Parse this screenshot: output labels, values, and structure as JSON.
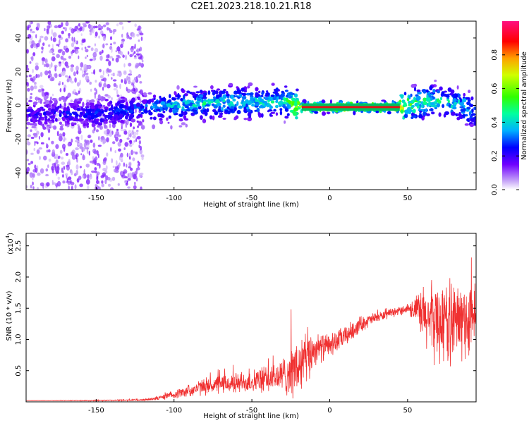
{
  "title": "C2E1.2023.218.10.21.R18",
  "colors": {
    "snr_line": "#f03030",
    "spectrum_low": "#d0b8f0",
    "spectrum_mid": "#5000e0",
    "spectrum_high": "#00e0c0",
    "line_core": "#e81010",
    "background": "#ffffff"
  },
  "chart_data": [
    {
      "type": "heatmap",
      "title": "",
      "xlabel": "Height of straight line (km)",
      "ylabel": "Frequency (Hz)",
      "xlim": [
        -195,
        94
      ],
      "ylim": [
        -50,
        50
      ],
      "x_ticks": [
        -150,
        -100,
        -50,
        0,
        50
      ],
      "y_ticks": [
        -40,
        -20,
        0,
        20,
        40
      ],
      "x_tick_labels": [
        "-150",
        "-100",
        "-50",
        "0",
        "50"
      ],
      "y_tick_labels": [
        "-40",
        "-20",
        "0",
        "20",
        "40"
      ],
      "colorbar": {
        "label": "Normalized spectral amplitude",
        "range": [
          0,
          1
        ],
        "ticks": [
          0.0,
          0.2,
          0.4,
          0.6,
          0.8
        ],
        "tick_labels": [
          "0.0",
          "0.2",
          "0.4",
          "0.6",
          "0.8"
        ]
      },
      "ridge": {
        "x": [
          -195,
          -150,
          -120,
          -100,
          -80,
          -60,
          -45,
          -30,
          -20,
          0,
          20,
          45,
          55,
          65,
          75,
          85,
          94
        ],
        "center_hz": [
          -5,
          -5,
          -2,
          0,
          1,
          2,
          1,
          3,
          -1,
          -1,
          -1,
          -1,
          1,
          3,
          2,
          0,
          -5
        ],
        "peak_amplitude": [
          0.25,
          0.3,
          0.35,
          0.45,
          0.5,
          0.5,
          0.5,
          0.5,
          0.85,
          0.95,
          0.95,
          0.9,
          0.6,
          0.55,
          0.5,
          0.5,
          0.4
        ]
      },
      "scatter_regions": [
        {
          "x": [
            -195,
            -120
          ],
          "y": [
            -50,
            50
          ],
          "amplitude": 0.05
        },
        {
          "x": [
            -120,
            -95
          ],
          "y": [
            -10,
            8
          ],
          "amplitude": 0.2
        }
      ]
    },
    {
      "type": "line",
      "title": "",
      "xlabel": "Height of straight line (km)",
      "ylabel": "SNR (10 * v/v)",
      "y_multiplier_label": "(x10",
      "y_multiplier_exponent": "4",
      "y_multiplier_close": ")",
      "xlim": [
        -195,
        94
      ],
      "ylim": [
        0,
        2.7
      ],
      "x_ticks": [
        -150,
        -100,
        -50,
        0,
        50
      ],
      "y_ticks": [
        0.5,
        1.0,
        1.5,
        2.0,
        2.5
      ],
      "x_tick_labels": [
        "-150",
        "-100",
        "-50",
        "0",
        "50"
      ],
      "y_tick_labels": [
        "0.5",
        "1.0",
        "1.5",
        "2.0",
        "2.5"
      ],
      "series": [
        {
          "x": [
            -195,
            -150,
            -120,
            -110,
            -100,
            -90,
            -80,
            -70,
            -60,
            -50,
            -40,
            -30,
            -20,
            -15,
            -10,
            0,
            10,
            20,
            30,
            40,
            45,
            50,
            55,
            60,
            70,
            80,
            90,
            94
          ],
          "y": [
            0.02,
            0.02,
            0.03,
            0.06,
            0.12,
            0.18,
            0.25,
            0.28,
            0.3,
            0.33,
            0.36,
            0.42,
            0.55,
            0.65,
            0.85,
            0.9,
            1.05,
            1.25,
            1.35,
            1.42,
            1.46,
            1.5,
            1.48,
            1.35,
            1.3,
            1.28,
            1.3,
            1.35
          ],
          "spread": [
            0.0,
            0.01,
            0.02,
            0.04,
            0.08,
            0.12,
            0.16,
            0.18,
            0.2,
            0.22,
            0.25,
            0.35,
            0.6,
            0.6,
            0.3,
            0.22,
            0.2,
            0.15,
            0.1,
            0.08,
            0.08,
            0.1,
            0.25,
            0.6,
            0.8,
            0.8,
            0.75,
            0.7
          ]
        }
      ]
    }
  ]
}
